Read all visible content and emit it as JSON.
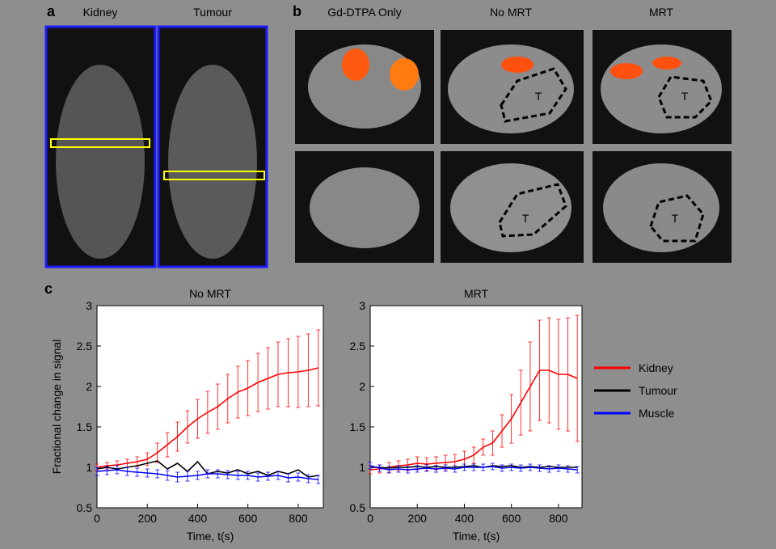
{
  "figure": {
    "panels": [
      "a",
      "b",
      "c"
    ],
    "panel_a_labels": [
      "Kidney",
      "Tumour"
    ],
    "panel_b_labels": [
      "Gd-DTPA Only",
      "No MRT",
      "MRT"
    ],
    "tumour_marker": "T"
  },
  "chart_data": [
    {
      "type": "line",
      "title": "No MRT",
      "x_label": "Time, t(s)",
      "y_label": "Fractional change in signal",
      "x": [
        0,
        40,
        80,
        120,
        160,
        200,
        240,
        280,
        320,
        360,
        400,
        440,
        480,
        520,
        560,
        600,
        640,
        680,
        720,
        760,
        800,
        840,
        880
      ],
      "series": [
        {
          "color": "#ff0000",
          "values": [
            1.0,
            1.02,
            1.03,
            1.05,
            1.07,
            1.1,
            1.18,
            1.28,
            1.38,
            1.5,
            1.6,
            1.68,
            1.75,
            1.85,
            1.93,
            1.98,
            2.05,
            2.1,
            2.15,
            2.17,
            2.18,
            2.2,
            2.23
          ],
          "errors": [
            0.04,
            0.04,
            0.05,
            0.05,
            0.06,
            0.08,
            0.12,
            0.15,
            0.18,
            0.2,
            0.24,
            0.26,
            0.28,
            0.3,
            0.32,
            0.34,
            0.36,
            0.38,
            0.4,
            0.42,
            0.44,
            0.45,
            0.47
          ]
        },
        {
          "color": "#000000",
          "values": [
            0.98,
            1.0,
            0.98,
            1.0,
            1.02,
            1.05,
            1.08,
            0.98,
            1.05,
            0.95,
            1.07,
            0.92,
            0.95,
            0.93,
            0.97,
            0.92,
            0.95,
            0.9,
            0.95,
            0.92,
            0.97,
            0.88,
            0.9
          ]
        },
        {
          "color": "#0000ff",
          "values": [
            0.95,
            0.96,
            0.97,
            0.95,
            0.94,
            0.93,
            0.92,
            0.9,
            0.88,
            0.89,
            0.9,
            0.92,
            0.92,
            0.91,
            0.9,
            0.9,
            0.88,
            0.89,
            0.9,
            0.87,
            0.88,
            0.86,
            0.85
          ],
          "errors": [
            0.05,
            0.05,
            0.05,
            0.05,
            0.05,
            0.05,
            0.05,
            0.06,
            0.06,
            0.06,
            0.05,
            0.05,
            0.05,
            0.05,
            0.05,
            0.05,
            0.05,
            0.05,
            0.05,
            0.05,
            0.05,
            0.05,
            0.05
          ]
        }
      ],
      "xlim": [
        0,
        900
      ],
      "xticks": [
        0,
        200,
        400,
        600,
        800
      ],
      "ylim": [
        0.5,
        3
      ],
      "yticks": [
        0.5,
        1,
        1.5,
        2,
        2.5,
        3
      ]
    },
    {
      "type": "line",
      "title": "MRT",
      "x_label": "Time, t(s)",
      "x": [
        0,
        40,
        80,
        120,
        160,
        200,
        240,
        280,
        320,
        360,
        400,
        440,
        480,
        520,
        560,
        600,
        640,
        680,
        720,
        760,
        800,
        840,
        880
      ],
      "series": [
        {
          "name": "Kidney",
          "color": "#ff0000",
          "values": [
            0.97,
            0.98,
            1.0,
            1.02,
            1.03,
            1.05,
            1.04,
            1.05,
            1.06,
            1.07,
            1.1,
            1.15,
            1.25,
            1.3,
            1.45,
            1.6,
            1.8,
            2.0,
            2.2,
            2.2,
            2.15,
            2.15,
            2.1
          ],
          "errors": [
            0.05,
            0.05,
            0.06,
            0.06,
            0.07,
            0.08,
            0.08,
            0.08,
            0.09,
            0.09,
            0.1,
            0.1,
            0.1,
            0.15,
            0.2,
            0.3,
            0.4,
            0.55,
            0.62,
            0.65,
            0.68,
            0.7,
            0.78
          ]
        },
        {
          "name": "Tumour",
          "color": "#000000",
          "values": [
            1.0,
            1.0,
            0.99,
            1.0,
            1.0,
            1.01,
            1.0,
            1.01,
            1.0,
            1.0,
            1.01,
            1.02,
            1.0,
            1.02,
            1.01,
            1.02,
            1.0,
            1.01,
            1.0,
            1.01,
            1.0,
            1.0,
            1.0
          ]
        },
        {
          "name": "Muscle",
          "color": "#0000ff",
          "values": [
            1.02,
            0.99,
            0.97,
            0.98,
            0.97,
            0.98,
            0.99,
            0.98,
            0.99,
            0.98,
            1.0,
            1.0,
            1.0,
            1.01,
            0.99,
            1.0,
            0.99,
            1.0,
            0.99,
            0.98,
            0.99,
            0.98,
            0.97
          ],
          "errors": [
            0.04,
            0.04,
            0.04,
            0.04,
            0.04,
            0.04,
            0.04,
            0.04,
            0.04,
            0.04,
            0.04,
            0.04,
            0.04,
            0.04,
            0.04,
            0.04,
            0.04,
            0.04,
            0.04,
            0.04,
            0.04,
            0.04,
            0.04
          ]
        }
      ],
      "xlim": [
        0,
        900
      ],
      "xticks": [
        0,
        200,
        400,
        600,
        800
      ],
      "ylim": [
        0.5,
        3
      ],
      "yticks": [
        0.5,
        1,
        1.5,
        2,
        2.5,
        3
      ]
    }
  ]
}
